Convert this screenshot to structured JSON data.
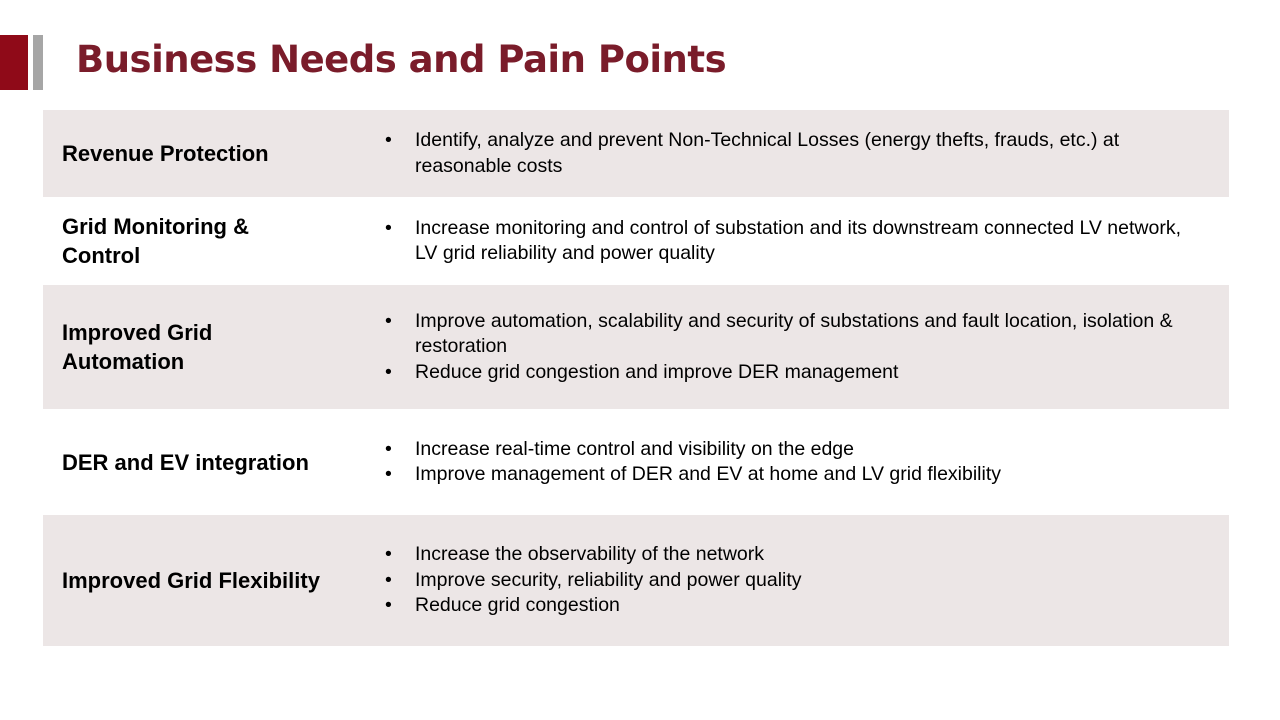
{
  "title": "Business Needs and Pain Points",
  "rows": [
    {
      "label": "Revenue Protection",
      "bullets": [
        "Identify, analyze and prevent Non-Technical Losses (energy thefts, frauds, etc.) at reasonable costs"
      ]
    },
    {
      "label": "Grid Monitoring & Control",
      "bullets": [
        "Increase monitoring and control of substation and its downstream connected LV network, LV grid reliability and power quality"
      ]
    },
    {
      "label": "Improved Grid Automation",
      "bullets": [
        "Improve automation, scalability and security of substations and fault location, isolation & restoration",
        "Reduce grid congestion and improve DER management"
      ]
    },
    {
      "label": "DER and EV integration",
      "bullets": [
        "Increase real-time control and visibility on the edge",
        "Improve management of DER and EV at home and LV grid flexibility"
      ]
    },
    {
      "label": "Improved Grid Flexibility",
      "bullets": [
        "Increase the observability of the network",
        "Improve security, reliability and power quality",
        "Reduce grid congestion"
      ]
    }
  ],
  "colors": {
    "title": "#7a1c2a",
    "accent_block": "#8f0a18",
    "accent_bar": "#a6a6a6",
    "row_shade": "#ece6e6"
  }
}
